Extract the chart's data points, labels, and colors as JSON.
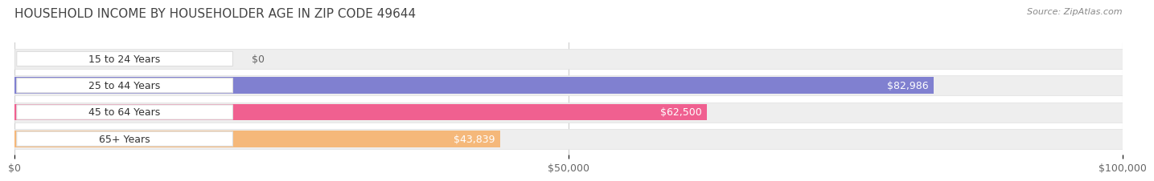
{
  "title": "HOUSEHOLD INCOME BY HOUSEHOLDER AGE IN ZIP CODE 49644",
  "source": "Source: ZipAtlas.com",
  "categories": [
    "15 to 24 Years",
    "25 to 44 Years",
    "45 to 64 Years",
    "65+ Years"
  ],
  "values": [
    0,
    82986,
    62500,
    43839
  ],
  "labels": [
    "$0",
    "$82,986",
    "$62,500",
    "$43,839"
  ],
  "bar_colors": [
    "#5ec8c8",
    "#8080d0",
    "#f06090",
    "#f5b87a"
  ],
  "bar_bg_color": "#f0f0f0",
  "bar_border_color": "#e0e0e0",
  "label_colors": [
    "#666666",
    "#ffffff",
    "#ffffff",
    "#666666"
  ],
  "xlim": [
    0,
    100000
  ],
  "xticks": [
    0,
    50000,
    100000
  ],
  "xticklabels": [
    "$0",
    "$50,000",
    "$100,000"
  ],
  "title_fontsize": 11,
  "source_fontsize": 8,
  "label_fontsize": 9,
  "tick_fontsize": 9,
  "category_fontsize": 9,
  "bg_color": "#ffffff",
  "grid_color": "#cccccc"
}
